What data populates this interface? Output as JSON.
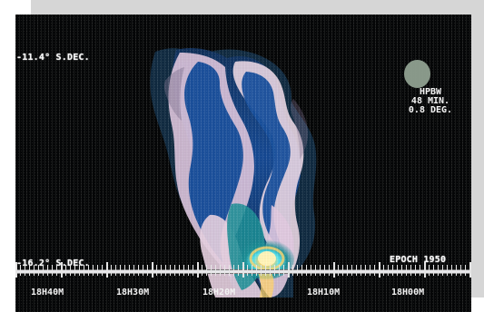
{
  "image": {
    "scene": "false-color radio astronomy map with coordinate labels"
  },
  "labels": {
    "dec_top": "-11.4° S.DEC.",
    "dec_bottom": "-16.2° S.DEC.",
    "epoch": "EPOCH 1950"
  },
  "hpbw": {
    "line1": "HPBW",
    "line2": "48 MIN.",
    "line3": "0.8 DEG."
  },
  "ra_labels": [
    "18H40M",
    "18H30M",
    "18H20M",
    "18H10M",
    "18H00M"
  ],
  "colors": {
    "background": "#050607",
    "deep_blue": "#164a96",
    "teal": "#1e8e93",
    "lavender": "#d8c0d8",
    "pale_pink": "#f0dde5",
    "hot_core": "#ffd36a",
    "cyan_core": "#3dd7e6",
    "gray_panel": "#d6d6d6"
  },
  "icons": {
    "beam_marker": "hpbw-circle-icon"
  }
}
